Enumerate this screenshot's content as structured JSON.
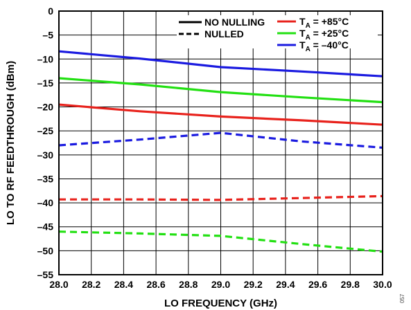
{
  "chart_data": {
    "type": "line",
    "xlabel": "LO FREQUENCY (GHz)",
    "ylabel": "LO TO RF FEEDTHROUGH (dBm)",
    "xlim": [
      28.0,
      30.0
    ],
    "ylim": [
      -55,
      0
    ],
    "xticks": [
      "28.0",
      "28.2",
      "28.4",
      "28.6",
      "28.8",
      "29.0",
      "29.2",
      "29.4",
      "29.6",
      "29.8",
      "30.0"
    ],
    "yticks": [
      "0",
      "–5",
      "–10",
      "–15",
      "–20",
      "–25",
      "–30",
      "–35",
      "–40",
      "–45",
      "–50",
      "–55"
    ],
    "grid": true,
    "legend_style": {
      "no_nulling": "NO NULLING",
      "nulled": "NULLED"
    },
    "legend_temps": [
      {
        "main": "T",
        "sub": "A",
        "rest": " = +85°C",
        "color": "#e8221c"
      },
      {
        "main": "T",
        "sub": "A",
        "rest": " = +25°C",
        "color": "#22e012"
      },
      {
        "main": "T",
        "sub": "A",
        "rest": " = –40°C",
        "color": "#1a1ae0"
      }
    ],
    "series": [
      {
        "color": "#1a1ae0",
        "style": "solid",
        "x": [
          28.0,
          28.5,
          29.0,
          29.5,
          30.0
        ],
        "y": [
          -8.4,
          -9.9,
          -11.7,
          -12.6,
          -13.6
        ]
      },
      {
        "color": "#22e012",
        "style": "solid",
        "x": [
          28.0,
          28.5,
          29.0,
          29.5,
          30.0
        ],
        "y": [
          -14.0,
          -15.3,
          -16.9,
          -18.0,
          -19.0
        ]
      },
      {
        "color": "#e8221c",
        "style": "solid",
        "x": [
          28.0,
          28.5,
          29.0,
          29.5,
          30.0
        ],
        "y": [
          -19.5,
          -20.9,
          -22.0,
          -22.8,
          -23.7
        ]
      },
      {
        "color": "#1a1ae0",
        "style": "dashed",
        "x": [
          28.0,
          28.5,
          29.0,
          29.5,
          30.0
        ],
        "y": [
          -28.0,
          -26.8,
          -25.4,
          -27.2,
          -28.5
        ]
      },
      {
        "color": "#e8221c",
        "style": "dashed",
        "x": [
          28.0,
          28.5,
          29.0,
          29.5,
          30.0
        ],
        "y": [
          -39.3,
          -39.3,
          -39.4,
          -39.0,
          -38.6
        ]
      },
      {
        "color": "#22e012",
        "style": "dashed",
        "x": [
          28.0,
          28.5,
          29.0,
          29.5,
          30.0
        ],
        "y": [
          -46.0,
          -46.4,
          -46.9,
          -48.6,
          -50.2
        ]
      }
    ]
  },
  "figure_id": "057"
}
